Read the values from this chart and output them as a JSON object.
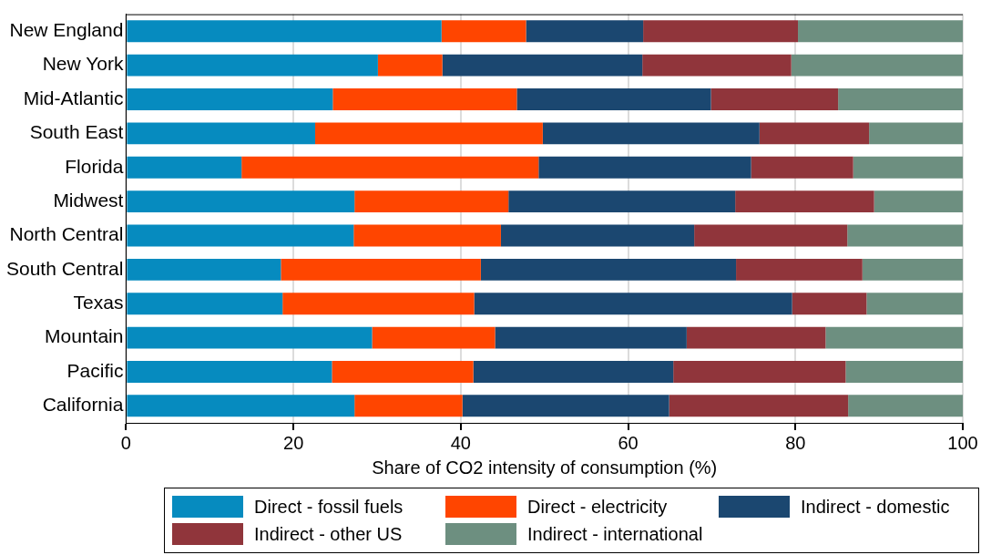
{
  "chart_data": {
    "type": "bar",
    "orientation": "horizontal",
    "stacked": true,
    "xlabel": "Share of CO2 intensity of consumption (%)",
    "categories": [
      "New England",
      "New York",
      "Mid-Atlantic",
      "South East",
      "Florida",
      "Midwest",
      "North Central",
      "South Central",
      "Texas",
      "Mountain",
      "Pacific",
      "California"
    ],
    "series": [
      {
        "name": "Direct - fossil fuels",
        "color": "#068bbf",
        "values": [
          37.7,
          30.1,
          24.7,
          22.6,
          13.8,
          27.3,
          27.2,
          18.5,
          18.7,
          29.4,
          24.6,
          27.3
        ]
      },
      {
        "name": "Direct - electricity",
        "color": "#ff4500",
        "values": [
          10.1,
          7.7,
          22.0,
          27.2,
          35.5,
          18.4,
          17.6,
          23.9,
          22.9,
          14.7,
          16.9,
          12.9
        ]
      },
      {
        "name": "Indirect - domestic",
        "color": "#1b4770",
        "values": [
          14.0,
          23.9,
          23.2,
          25.9,
          25.4,
          27.1,
          23.1,
          30.5,
          38.0,
          22.9,
          23.9,
          24.7
        ]
      },
      {
        "name": "Indirect - other US",
        "color": "#90353b",
        "values": [
          18.5,
          17.8,
          15.2,
          13.1,
          12.2,
          16.6,
          18.3,
          15.1,
          8.9,
          16.6,
          20.6,
          21.4
        ]
      },
      {
        "name": "Indirect - international",
        "color": "#6d8f80",
        "values": [
          19.7,
          20.5,
          14.9,
          11.2,
          13.1,
          10.6,
          13.8,
          12.0,
          11.5,
          16.4,
          14.0,
          13.7
        ]
      }
    ],
    "xlim": [
      0,
      100
    ],
    "xticks": [
      0,
      20,
      40,
      60,
      80,
      100
    ],
    "grid": "x",
    "legend": "bottom"
  }
}
